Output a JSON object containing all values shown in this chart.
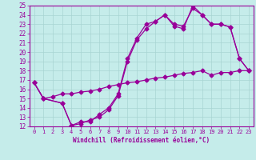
{
  "xlabel": "Windchill (Refroidissement éolien,°C)",
  "bg_color": "#c5ecea",
  "grid_color": "#a8d5d3",
  "line_color": "#990099",
  "xlim": [
    -0.5,
    23.5
  ],
  "ylim": [
    12,
    25
  ],
  "xticks": [
    0,
    1,
    2,
    3,
    4,
    5,
    6,
    7,
    8,
    9,
    10,
    11,
    12,
    13,
    14,
    15,
    16,
    17,
    18,
    19,
    20,
    21,
    22,
    23
  ],
  "yticks": [
    12,
    13,
    14,
    15,
    16,
    17,
    18,
    19,
    20,
    21,
    22,
    23,
    24,
    25
  ],
  "line1_x": [
    0,
    1,
    3,
    4,
    5,
    6,
    7,
    8,
    9,
    10,
    11,
    12,
    13,
    14,
    15,
    16,
    17,
    18,
    19,
    20,
    21,
    22,
    23
  ],
  "line1_y": [
    16.7,
    15.0,
    14.5,
    12.1,
    12.3,
    12.7,
    13.0,
    13.8,
    15.3,
    19.0,
    21.3,
    22.5,
    23.3,
    24.0,
    22.8,
    22.5,
    25.0,
    24.0,
    23.0,
    23.0,
    22.7,
    19.3,
    18.0
  ],
  "line2_x": [
    0,
    1,
    3,
    4,
    5,
    6,
    7,
    8,
    9,
    10,
    11,
    12,
    13,
    14,
    15,
    16,
    17,
    18,
    19,
    20,
    21,
    22,
    23
  ],
  "line2_y": [
    16.7,
    15.0,
    14.5,
    12.1,
    12.5,
    12.5,
    13.3,
    14.0,
    15.5,
    19.3,
    21.5,
    23.0,
    23.3,
    24.0,
    23.0,
    22.8,
    24.7,
    24.0,
    23.0,
    23.0,
    22.7,
    19.3,
    18.0
  ],
  "line3_x": [
    0,
    1,
    2,
    3,
    4,
    5,
    6,
    7,
    8,
    9,
    10,
    11,
    12,
    13,
    14,
    15,
    16,
    17,
    18,
    19,
    20,
    21,
    22,
    23
  ],
  "line3_y": [
    16.7,
    15.0,
    15.2,
    15.5,
    15.5,
    15.7,
    15.8,
    16.0,
    16.3,
    16.5,
    16.7,
    16.8,
    17.0,
    17.2,
    17.3,
    17.5,
    17.7,
    17.8,
    18.0,
    17.5,
    17.8,
    17.8,
    18.0,
    18.0
  ]
}
